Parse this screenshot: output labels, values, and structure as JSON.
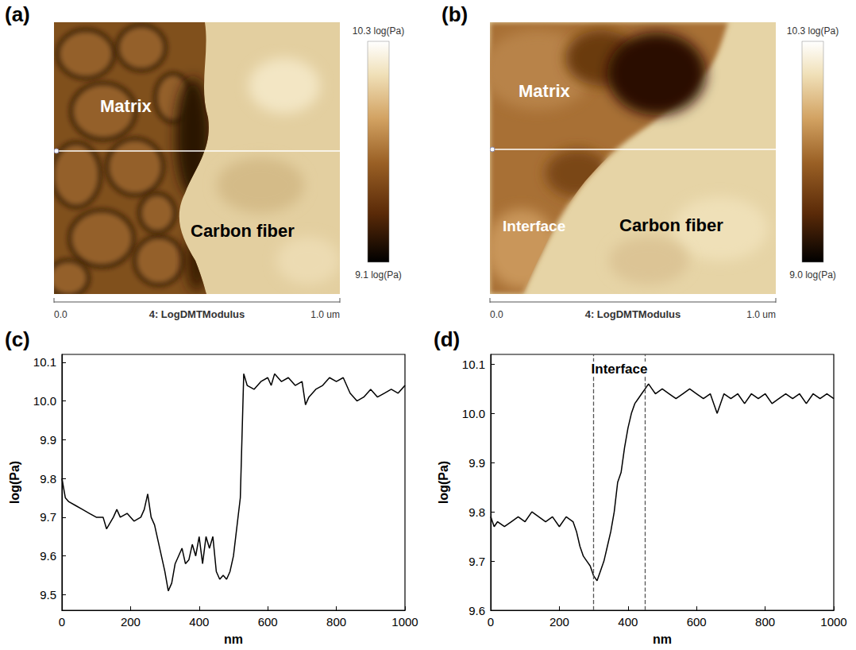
{
  "chart_data": [
    {
      "panel": "(a)",
      "type": "afm_map",
      "annotations": [
        "Matrix",
        "Carbon fiber"
      ],
      "xlabel": "4: LogDMTModulus",
      "xlim": [
        0,
        1
      ],
      "xticks": [
        {
          "value": 0,
          "label": "0.0"
        },
        {
          "value": 1,
          "label": "1.0 um"
        }
      ],
      "colorbar": {
        "range": [
          9.1,
          10.3
        ],
        "ticks": [
          {
            "value": 10.3,
            "label": "10.3 log(Pa)"
          },
          {
            "value": 9.1,
            "label": "9.1 log(Pa)"
          }
        ]
      }
    },
    {
      "panel": "(b)",
      "type": "afm_map",
      "annotations": [
        "Matrix",
        "Interface",
        "Carbon fiber"
      ],
      "xlabel": "4: LogDMTModulus",
      "xlim": [
        0,
        1
      ],
      "xticks": [
        {
          "value": 0,
          "label": "0.0"
        },
        {
          "value": 1,
          "label": "1.0 um"
        }
      ],
      "colorbar": {
        "range": [
          9.0,
          10.3
        ],
        "ticks": [
          {
            "value": 10.3,
            "label": "10.3 log(Pa)"
          },
          {
            "value": 9.0,
            "label": "9.0 log(Pa)"
          }
        ]
      }
    },
    {
      "panel": "(c)",
      "type": "line",
      "xlabel": "nm",
      "ylabel": "log(Pa)",
      "color": "#000000",
      "grid": false,
      "x": [
        0,
        10,
        20,
        40,
        60,
        80,
        100,
        120,
        130,
        150,
        160,
        170,
        190,
        210,
        230,
        240,
        250,
        260,
        270,
        280,
        300,
        310,
        320,
        330,
        340,
        350,
        360,
        370,
        380,
        390,
        400,
        410,
        420,
        430,
        440,
        450,
        460,
        470,
        480,
        490,
        500,
        520,
        530,
        540,
        560,
        580,
        600,
        610,
        620,
        640,
        660,
        680,
        700,
        710,
        720,
        740,
        760,
        780,
        800,
        820,
        840,
        860,
        880,
        900,
        920,
        940,
        960,
        980,
        1000
      ],
      "values": [
        9.8,
        9.75,
        9.74,
        9.73,
        9.72,
        9.71,
        9.7,
        9.7,
        9.67,
        9.7,
        9.72,
        9.7,
        9.71,
        9.69,
        9.7,
        9.72,
        9.76,
        9.7,
        9.68,
        9.64,
        9.56,
        9.51,
        9.53,
        9.58,
        9.6,
        9.62,
        9.58,
        9.59,
        9.63,
        9.6,
        9.65,
        9.58,
        9.65,
        9.62,
        9.65,
        9.56,
        9.54,
        9.55,
        9.54,
        9.56,
        9.6,
        9.75,
        10.07,
        10.04,
        10.03,
        10.05,
        10.06,
        10.04,
        10.07,
        10.05,
        10.06,
        10.04,
        10.05,
        9.99,
        10.01,
        10.03,
        10.04,
        10.06,
        10.05,
        10.06,
        10.02,
        10.0,
        10.01,
        10.03,
        10.01,
        10.02,
        10.03,
        10.02,
        10.04
      ],
      "xlim": [
        0,
        1000
      ],
      "xticks": [
        0,
        200,
        400,
        600,
        800,
        1000
      ],
      "ylim": [
        9.46,
        10.12
      ],
      "yticks": [
        9.5,
        9.6,
        9.7,
        9.8,
        9.9,
        {
          "value": 10.0,
          "label": "10.0"
        },
        10.1
      ]
    },
    {
      "panel": "(d)",
      "type": "line",
      "xlabel": "nm",
      "ylabel": "log(Pa)",
      "color": "#000000",
      "grid": false,
      "x": [
        0,
        10,
        20,
        40,
        60,
        80,
        100,
        120,
        140,
        160,
        180,
        200,
        220,
        240,
        250,
        260,
        270,
        280,
        290,
        300,
        310,
        320,
        330,
        340,
        350,
        360,
        370,
        380,
        390,
        400,
        410,
        420,
        430,
        440,
        450,
        460,
        470,
        480,
        500,
        520,
        540,
        560,
        580,
        600,
        620,
        640,
        660,
        680,
        700,
        720,
        740,
        760,
        780,
        800,
        820,
        840,
        860,
        880,
        900,
        920,
        940,
        960,
        980,
        1000
      ],
      "values": [
        9.79,
        9.77,
        9.78,
        9.77,
        9.78,
        9.79,
        9.78,
        9.8,
        9.79,
        9.78,
        9.79,
        9.77,
        9.79,
        9.78,
        9.76,
        9.73,
        9.71,
        9.7,
        9.69,
        9.67,
        9.66,
        9.68,
        9.7,
        9.73,
        9.76,
        9.8,
        9.86,
        9.88,
        9.93,
        9.97,
        10.0,
        10.02,
        10.03,
        10.04,
        10.05,
        10.06,
        10.05,
        10.04,
        10.05,
        10.04,
        10.03,
        10.04,
        10.05,
        10.04,
        10.03,
        10.04,
        10.0,
        10.04,
        10.03,
        10.04,
        10.02,
        10.04,
        10.03,
        10.04,
        10.02,
        10.03,
        10.04,
        10.03,
        10.04,
        10.02,
        10.04,
        10.03,
        10.04,
        10.03
      ],
      "xlim": [
        0,
        1000
      ],
      "xticks": [
        0,
        200,
        400,
        600,
        800,
        1000
      ],
      "ylim": [
        9.6,
        10.12
      ],
      "yticks": [
        9.6,
        9.7,
        9.8,
        9.9,
        {
          "value": 10.0,
          "label": "10.0"
        },
        10.1
      ],
      "vlines": [
        300,
        450
      ],
      "annotations": [
        {
          "text": "Interface",
          "x": 375,
          "y": 10.09
        }
      ]
    }
  ]
}
